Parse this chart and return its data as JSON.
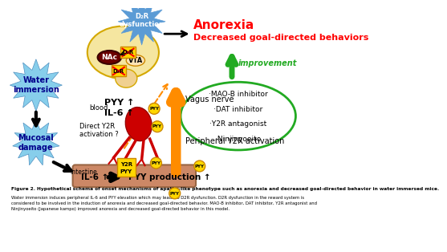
{
  "fig_width": 4.74,
  "fig_height": 3.82,
  "background_color": "#ffffff",
  "caption_bold": "Figure 2. Hypothetical schema of onset mechanisms of apathy-like phenotype such as anorexia and decreased goal-directed behavior in water immersed mice.",
  "caption_normal": "Water immersion induces peripheral IL-6 and PYY elevation which may leads to D2R dysfunction. D2R dysfunction in the reward system is\nconsidered to be involved in the induction of anorexia and decreased goal-directed behavior. MAO-B inhibitor, DAT inhibitor, Y2R antagonist and\nNinjinyoeito (Japanese kampo) improved anorexia and decreased goal-directed behavior in this model.",
  "anorexia_text": "Anorexia",
  "decreased_text": "Decreased goal-directed behaviors",
  "d2r_dysfunction": "D₂R\ndysfunction",
  "improvement_text": "improvement",
  "nac_text": "NAc",
  "vta_text": "VTA",
  "direct_y2r": "Direct Y2R\nactivation ?",
  "vagus_nerve": "Vagus nerve",
  "blood_text": "blood",
  "pyy_up": "PYY ↑",
  "il6_up_blood": "IL-6 ↑",
  "water_immersion": "Water\nimmersion",
  "mucosal_damage": "Mucosal\ndamage",
  "intestine_text": "Intestine",
  "il6_intestine": "IL-6 ↑",
  "pyy_production": "PYY production ↑",
  "peripheral_y2r": "Peripheral Y2R activation",
  "bullet_items": [
    "·MAO-B inhibitor",
    "·DAT inhibitor",
    "·Y2R antagonist",
    "·Ninjinyoeito"
  ],
  "colors": {
    "red_text": "#ff0000",
    "green_text": "#22aa22",
    "dark_green_arrow": "#22aa22",
    "orange_arrow": "#ff8c00",
    "black": "#000000",
    "blue_burst": "#5b9bd5",
    "blue_burst_light": "#87ceeb",
    "brain_fill": "#f5e6a0",
    "brain_edge": "#d4a800",
    "nac_fill": "#6b0000",
    "vta_fill": "#ffe4b5",
    "d2r_fill": "#ffd700",
    "d2r_edge": "#cc8800",
    "green_ellipse": "#22aa22",
    "intestine_fill": "#cc8866",
    "intestine_edge": "#996644",
    "red_vagus": "#cc0000",
    "yellow_gold": "#ffd700",
    "pyy_edge": "#cc8800",
    "white": "#ffffff"
  }
}
